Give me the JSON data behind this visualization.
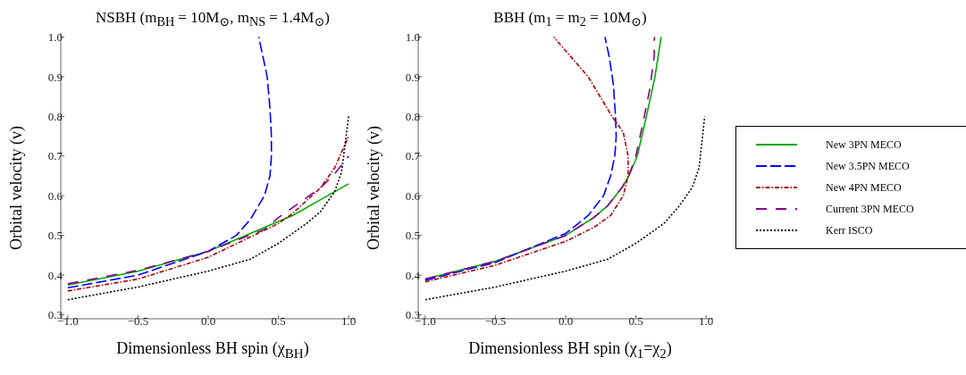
{
  "chart_data": [
    {
      "type": "line",
      "title": "NSBH (m$_{BH}$ = 10M$_{⊙}$, m$_{NS}$ = 1.4M$_{⊙}$)",
      "xlabel": "Dimensionless BH spin (χ$_{BH}$)",
      "ylabel": "Orbital velocity (v)",
      "xlim": [
        -1.05,
        1.05
      ],
      "ylim": [
        0.29,
        1.01
      ],
      "xticks": [
        {
          "value": -1,
          "label": "−1.0"
        },
        {
          "value": -0.5,
          "label": "−0.5"
        },
        {
          "value": 0,
          "label": "0.0"
        },
        {
          "value": 0.5,
          "label": "0.5"
        },
        {
          "value": 1,
          "label": "1.0"
        }
      ],
      "yticks": [
        0.3,
        0.4,
        0.5,
        0.6,
        0.7,
        0.8,
        0.9,
        {
          "value": 1,
          "label": "1.0"
        }
      ],
      "legend": false,
      "series": [
        {
          "color": "#00aa00",
          "line_style": "solid",
          "x": [
            -1,
            -0.5,
            0,
            0.5,
            0.6,
            0.8,
            1
          ],
          "values": [
            0.375,
            0.41,
            0.46,
            0.535,
            0.55,
            0.59,
            0.63
          ]
        },
        {
          "color": "#0000ff",
          "line_style": "dashed",
          "x": [
            -1,
            -0.5,
            0,
            0.2,
            0.3,
            0.4,
            0.44,
            0.45,
            0.45,
            0.44,
            0.42,
            0.36
          ],
          "values": [
            0.368,
            0.4,
            0.46,
            0.5,
            0.54,
            0.6,
            0.65,
            0.7,
            0.75,
            0.82,
            0.9,
            1.0
          ]
        },
        {
          "color": "#aa0000",
          "line_style": "dashdot",
          "x": [
            -1,
            -0.5,
            0,
            0.5,
            0.6,
            0.8,
            0.9,
            1
          ],
          "values": [
            0.36,
            0.39,
            0.445,
            0.53,
            0.555,
            0.62,
            0.67,
            0.75
          ]
        },
        {
          "color": "#880088",
          "line_style": "longdash",
          "x": [
            -1,
            -0.5,
            0,
            0.4,
            0.5,
            0.6,
            0.8,
            0.9,
            1
          ],
          "values": [
            0.378,
            0.412,
            0.46,
            0.515,
            0.545,
            0.57,
            0.62,
            0.655,
            0.7
          ]
        },
        {
          "color": "#000000",
          "line_style": "dotted",
          "x": [
            -1,
            -0.5,
            0,
            0.3,
            0.5,
            0.7,
            0.8,
            0.9,
            0.95,
            1
          ],
          "values": [
            0.338,
            0.37,
            0.41,
            0.44,
            0.48,
            0.53,
            0.56,
            0.61,
            0.66,
            0.8
          ]
        }
      ]
    },
    {
      "type": "line",
      "title": "BBH (m$_{1}$ = m$_{2}$ = 10M$_{⊙}$)",
      "xlabel": "Dimensionless BH spin (χ$_{1}$=χ$_{2}$)",
      "ylabel": "Orbital velocity (v)",
      "xlim": [
        -1.05,
        1.05
      ],
      "ylim": [
        0.29,
        1.01
      ],
      "xticks": [
        {
          "value": -1,
          "label": "−1.0"
        },
        {
          "value": -0.5,
          "label": "−0.5"
        },
        {
          "value": 0,
          "label": "0.0"
        },
        {
          "value": 0.5,
          "label": "0.5"
        },
        {
          "value": 1,
          "label": "1.0"
        }
      ],
      "yticks": [
        0.3,
        0.4,
        0.5,
        0.6,
        0.7,
        0.8,
        0.9,
        {
          "value": 1,
          "label": "1.0"
        }
      ],
      "legend": "right",
      "series": [
        {
          "name": "New 3PN MECO",
          "color": "#00aa00",
          "line_style": "solid",
          "x": [
            -1,
            -0.5,
            0,
            0.2,
            0.3,
            0.4,
            0.45,
            0.51,
            0.575,
            0.636,
            0.68
          ],
          "values": [
            0.39,
            0.435,
            0.5,
            0.545,
            0.575,
            0.62,
            0.65,
            0.7,
            0.8,
            0.9,
            1.0
          ]
        },
        {
          "name": "New 3.5PN MECO",
          "color": "#0000ff",
          "line_style": "dashed",
          "x": [
            -1,
            -0.5,
            0,
            0.16,
            0.27,
            0.32,
            0.35,
            0.36,
            0.355,
            0.34,
            0.31,
            0.28
          ],
          "values": [
            0.387,
            0.432,
            0.505,
            0.55,
            0.6,
            0.65,
            0.7,
            0.75,
            0.8,
            0.88,
            0.95,
            1.0
          ]
        },
        {
          "name": "New 4PN MECO",
          "color": "#aa0000",
          "line_style": "dashdot",
          "x": [
            -1,
            -0.5,
            0,
            0.2,
            0.32,
            0.41,
            0.445,
            0.445,
            0.41,
            0.33,
            0.16,
            -0.085
          ],
          "values": [
            0.383,
            0.425,
            0.485,
            0.52,
            0.55,
            0.6,
            0.65,
            0.7,
            0.76,
            0.8,
            0.9,
            1.0
          ]
        },
        {
          "name": "Current 3PN MECO",
          "color": "#880088",
          "line_style": "longdash",
          "x": [
            -1,
            -0.5,
            0,
            0.2,
            0.3,
            0.4,
            0.45,
            0.5,
            0.56,
            0.6,
            0.63,
            0.632
          ],
          "values": [
            0.39,
            0.435,
            0.5,
            0.545,
            0.575,
            0.62,
            0.65,
            0.7,
            0.8,
            0.87,
            0.95,
            1.0
          ]
        },
        {
          "name": "Kerr ISCO",
          "color": "#000000",
          "line_style": "dotted",
          "x": [
            -1,
            -0.5,
            0,
            0.3,
            0.5,
            0.7,
            0.8,
            0.9,
            0.95,
            0.99
          ],
          "values": [
            0.338,
            0.37,
            0.41,
            0.44,
            0.48,
            0.53,
            0.57,
            0.62,
            0.67,
            0.8
          ]
        }
      ]
    }
  ]
}
